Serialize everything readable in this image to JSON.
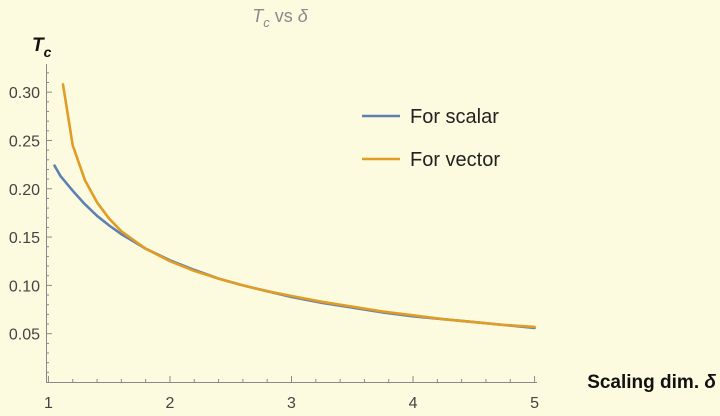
{
  "chart_data": {
    "type": "line",
    "title_parts": {
      "t": "T",
      "sub": "c",
      "mid": " vs ",
      "delta": "δ"
    },
    "xlabel_parts": {
      "text": "Scaling dim. ",
      "delta": "δ"
    },
    "ylabel_parts": {
      "t": "T",
      "sub": "c"
    },
    "xlim": [
      0.98,
      5.02
    ],
    "ylim": [
      0.0,
      0.325
    ],
    "xticks": [
      1,
      2,
      3,
      4,
      5
    ],
    "xtick_labels": [
      "1",
      "2",
      "3",
      "4",
      "5"
    ],
    "yticks": [
      0.05,
      0.1,
      0.15,
      0.2,
      0.25,
      0.3
    ],
    "ytick_labels": [
      "0.05",
      "0.10",
      "0.15",
      "0.20",
      "0.25",
      "0.30"
    ],
    "grid": false,
    "legend_position": "top-right",
    "series": [
      {
        "name": "For scalar",
        "color": "#5e81b5",
        "x": [
          1.05,
          1.1,
          1.2,
          1.3,
          1.4,
          1.5,
          1.6,
          1.8,
          2.0,
          2.2,
          2.4,
          2.6,
          2.8,
          3.0,
          3.25,
          3.5,
          3.75,
          4.0,
          4.25,
          4.5,
          4.75,
          5.0
        ],
        "y": [
          0.224,
          0.213,
          0.198,
          0.184,
          0.172,
          0.162,
          0.153,
          0.138,
          0.126,
          0.116,
          0.107,
          0.1,
          0.094,
          0.088,
          0.082,
          0.077,
          0.072,
          0.068,
          0.065,
          0.062,
          0.059,
          0.056
        ]
      },
      {
        "name": "For vector",
        "color": "#e19c24",
        "x": [
          1.12,
          1.2,
          1.3,
          1.4,
          1.5,
          1.6,
          1.8,
          2.0,
          2.2,
          2.4,
          2.6,
          2.8,
          3.0,
          3.25,
          3.5,
          3.75,
          4.0,
          4.25,
          4.5,
          4.75,
          5.0
        ],
        "y": [
          0.308,
          0.245,
          0.209,
          0.186,
          0.169,
          0.156,
          0.138,
          0.125,
          0.115,
          0.107,
          0.1,
          0.094,
          0.089,
          0.083,
          0.078,
          0.073,
          0.069,
          0.065,
          0.062,
          0.059,
          0.057
        ]
      }
    ]
  }
}
